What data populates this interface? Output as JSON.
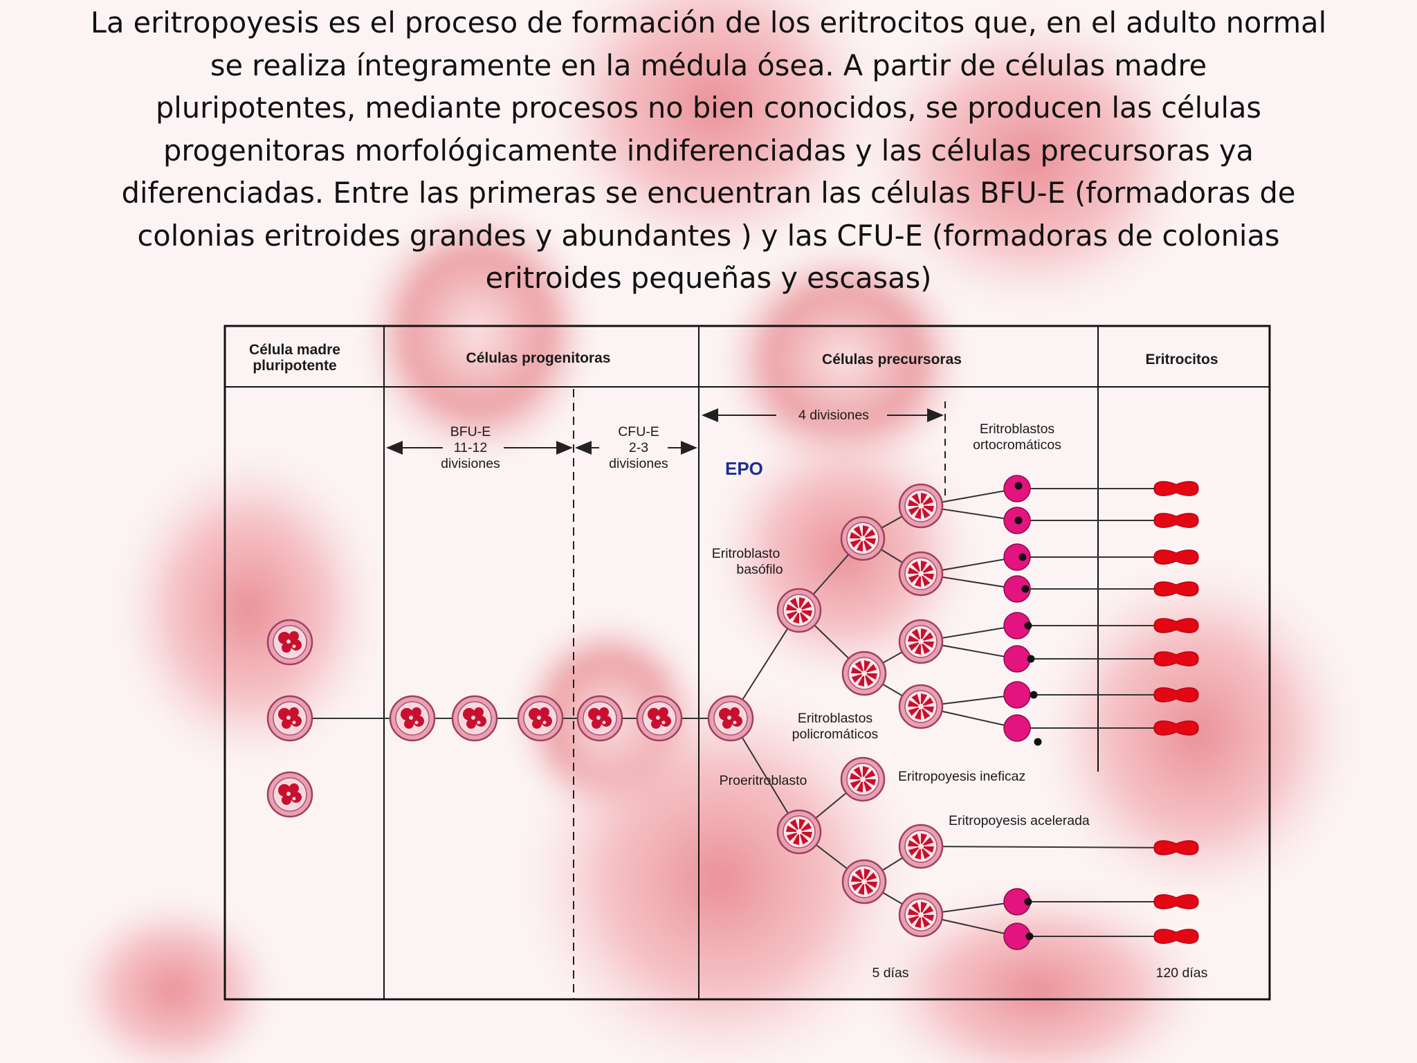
{
  "intro_lines": [
    "La eritropoyesis es el proceso de formación de los eritrocitos que, en el adulto normal",
    "se realiza íntegramente en la médula ósea. A partir de células madre",
    "pluripotentes, mediante procesos no bien conocidos, se producen las células",
    "progenitoras morfológicamente indiferenciadas y las células precursoras ya",
    "diferenciadas. Entre las primeras se encuentran las células BFU-E (formadoras de",
    "colonias eritroides grandes y abundantes ) y las CFU-E (formadoras de colonias",
    "eritroides pequeñas y escasas)"
  ],
  "headers": {
    "stem_line1": "Célula madre",
    "stem_line2": "pluripotente",
    "progenitors": "Células progenitoras",
    "precursors": "Células precursoras",
    "erythrocytes": "Eritrocitos"
  },
  "labels": {
    "bfu_line1": "BFU-E",
    "bfu_line2": "11-12",
    "bfu_line3": "divisiones",
    "cfu_line1": "CFU-E",
    "cfu_line2": "2-3",
    "cfu_line3": "divisiones",
    "four_divisions": "4 divisiones",
    "epo": "EPO",
    "ortho_line1": "Eritroblastos",
    "ortho_line2": "ortocromáticos",
    "basophil_line1": "Eritroblasto",
    "basophil_line2": "basófilo",
    "polychrom_line1": "Eritroblastos",
    "polychrom_line2": "policromáticos",
    "proerythroblast": "Proeritroblasto",
    "ineffective": "Eritropoyesis ineficaz",
    "accelerated": "Eritropoyesis acelerada",
    "five_days": "5 días",
    "days_120": "120 días"
  },
  "colors": {
    "epo_label": "#1b2f8f",
    "cell_outer": "#e8a0b4",
    "cell_nucleus": "#c8102e",
    "orthochromatic_cell": "#e3147f",
    "erythrocyte": "#e30613"
  }
}
